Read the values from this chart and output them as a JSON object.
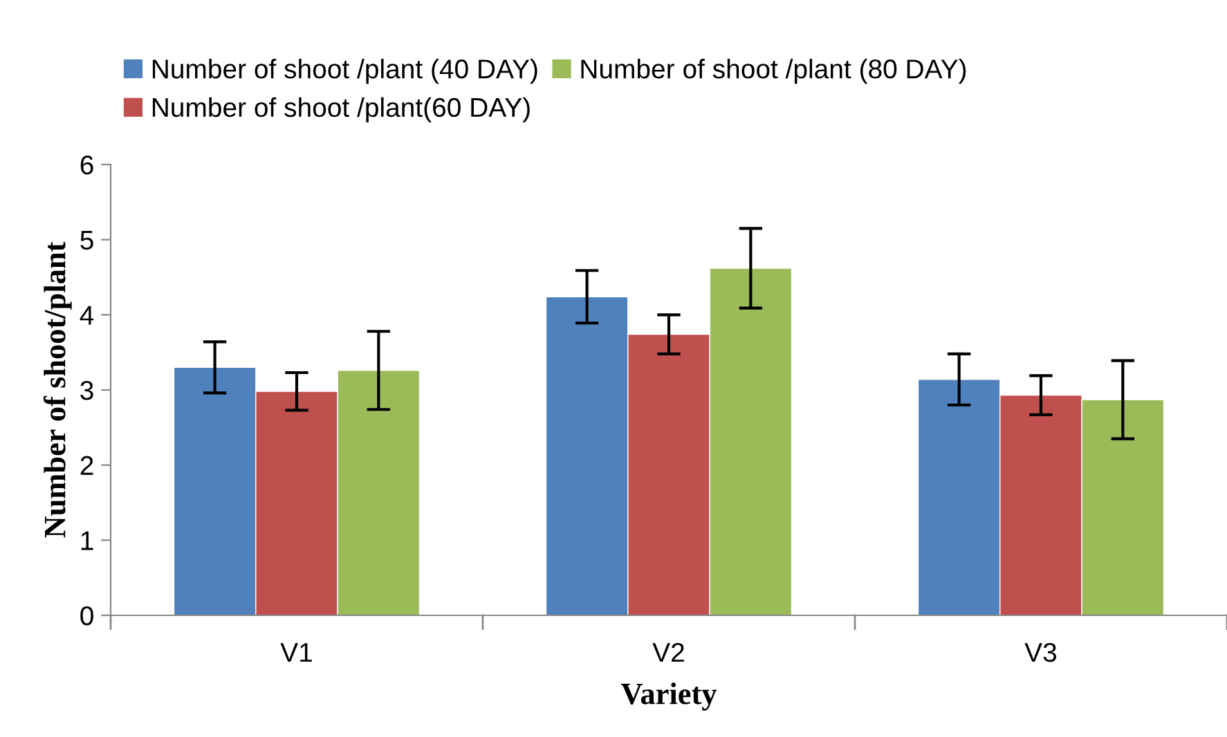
{
  "chart_data": {
    "type": "bar",
    "xlabel": "Variety",
    "ylabel": "Number of shoot/plant",
    "categories": [
      "V1",
      "V2",
      "V3"
    ],
    "series": [
      {
        "name": "Number of shoot /plant (40 DAY)",
        "color": "#4f81bd",
        "values": [
          3.3,
          4.24,
          3.14
        ],
        "errors": [
          0.34,
          0.35,
          0.34
        ]
      },
      {
        "name": "Number of shoot /plant(60 DAY)",
        "color": "#c0504d",
        "values": [
          2.98,
          3.74,
          2.93
        ],
        "errors": [
          0.25,
          0.26,
          0.26
        ]
      },
      {
        "name": "Number of shoot /plant (80 DAY)",
        "color": "#9bbb59",
        "values": [
          3.26,
          4.62,
          2.87
        ],
        "errors": [
          0.52,
          0.53,
          0.52
        ]
      }
    ],
    "ylim": [
      0,
      6
    ],
    "yticks": [
      0,
      1,
      2,
      3,
      4,
      5,
      6
    ],
    "grid": false,
    "legend": "top"
  }
}
